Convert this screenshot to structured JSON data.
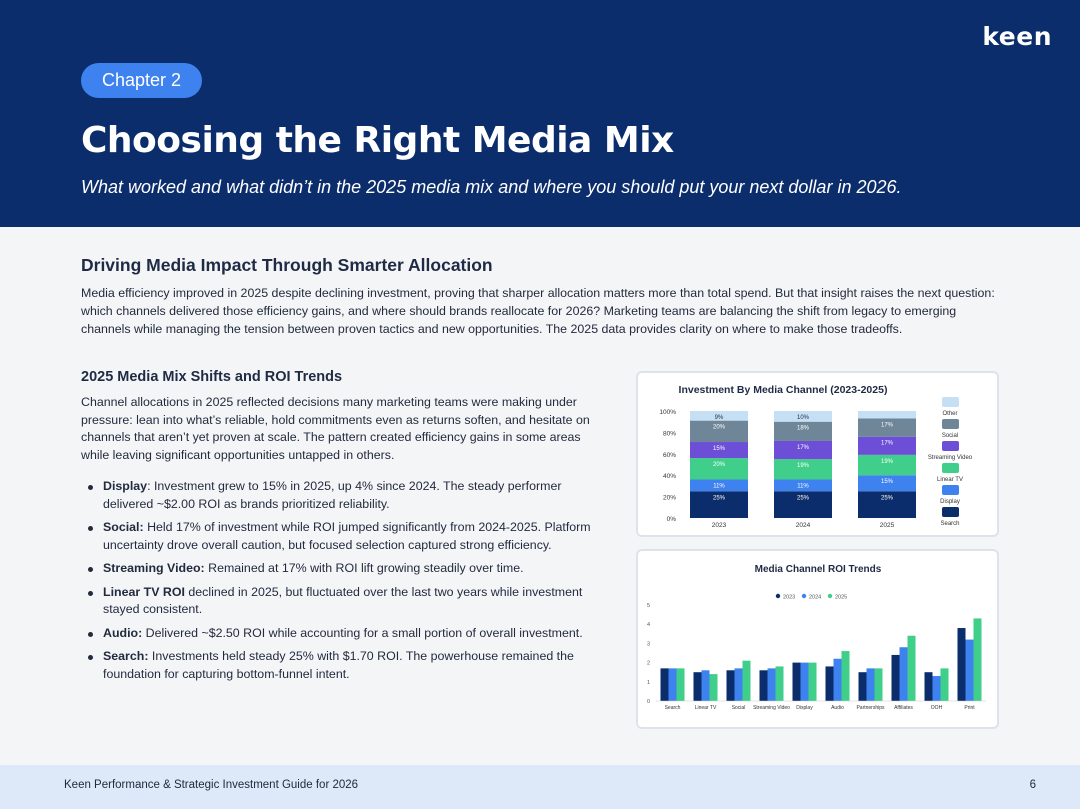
{
  "header": {
    "logo": "keen",
    "chapter": "Chapter 2",
    "title": "Choosing the Right Media Mix",
    "subtitle": "What worked and what didn’t in the 2025 media mix and where you should put your next dollar in 2026."
  },
  "section": {
    "title": "Driving Media Impact Through Smarter Allocation",
    "intro": "Media efficiency improved in 2025 despite declining investment, proving that sharper allocation matters more than total spend. But that insight raises the next question: which channels delivered those efficiency gains, and where should brands reallocate for 2026? Marketing teams are balancing the shift from legacy to emerging channels while managing the tension between proven tactics and new opportunities. The 2025  data provides clarity on where to make those tradeoffs."
  },
  "trends": {
    "title": "2025 Media Mix Shifts and ROI Trends",
    "paragraph": "Channel allocations in 2025 reflected decisions many marketing teams were making under pressure: lean into what’s reliable, hold commitments even as returns soften, and hesitate on channels that aren’t yet proven at scale. The pattern created efficiency gains in some areas while leaving significant opportunities untapped in others.",
    "bullets": [
      {
        "label": "Display",
        "text": ": Investment grew to 15% in 2025, up 4%  since 2024. The steady performer delivered ~$2.00 ROI as brands prioritized reliability."
      },
      {
        "label": "Social:",
        "text": " Held 17% of investment while ROI jumped significantly from 2024-2025. Platform uncertainty drove overall caution, but focused selection captured strong efficiency."
      },
      {
        "label": "Streaming Video:",
        "text": " Remained at 17% with ROI lift growing steadily over time."
      },
      {
        "label": "Linear TV ROI",
        "text": " declined  in 2025, but fluctuated over the last two years while investment stayed consistent."
      },
      {
        "label": "Audio:",
        "text": " Delivered ~$2.50 ROI while accounting for a small portion of overall investment."
      },
      {
        "label": "Search:",
        "text": " Investments held steady 25% with $1.70 ROI. The powerhouse remained the foundation for capturing bottom-funnel intent."
      }
    ]
  },
  "chart_data": [
    {
      "type": "bar",
      "stacked": true,
      "title": "Investment By Media Channel  (2023-2025)",
      "categories": [
        "2023",
        "2024",
        "2025"
      ],
      "yticks": [
        "0%",
        "20%",
        "40%",
        "60%",
        "80%",
        "100%"
      ],
      "ylim": [
        0,
        100
      ],
      "legend_position": "right",
      "series": [
        {
          "name": "Search",
          "color": "#0b2d6b",
          "values": [
            25,
            25,
            25
          ],
          "labels": [
            "25%",
            "25%",
            "25%"
          ]
        },
        {
          "name": "Display",
          "color": "#3e82f0",
          "values": [
            11,
            11,
            15
          ],
          "labels": [
            "11%",
            "11%",
            "15%"
          ]
        },
        {
          "name": "Linear TV",
          "color": "#3fcf8a",
          "values": [
            20,
            19,
            19
          ],
          "labels": [
            "20%",
            "19%",
            "19%"
          ]
        },
        {
          "name": "Streaming Video",
          "color": "#6c4fd6",
          "values": [
            15,
            17,
            17
          ],
          "labels": [
            "15%",
            "17%",
            "17%"
          ]
        },
        {
          "name": "Social",
          "color": "#6f8698",
          "values": [
            20,
            18,
            17
          ],
          "labels": [
            "20%",
            "18%",
            "17%"
          ]
        },
        {
          "name": "Other",
          "color": "#c5e0f5",
          "values": [
            9,
            10,
            7
          ],
          "labels": [
            "9%",
            "10%",
            ""
          ]
        }
      ]
    },
    {
      "type": "bar",
      "title": "Media Channel ROI Trends",
      "categories": [
        "Search",
        "Linear TV",
        "Social",
        "Streaming Video",
        "Display",
        "Audio",
        "Partnerships",
        "Affiliates",
        "OOH",
        "Print"
      ],
      "yticks": [
        "0",
        "1",
        "2",
        "3",
        "4",
        "5"
      ],
      "ylim": [
        0,
        5
      ],
      "legend_position": "top",
      "series": [
        {
          "name": "2023",
          "color": "#0b2d6b",
          "values": [
            1.7,
            1.5,
            1.6,
            1.6,
            2.0,
            1.8,
            1.5,
            2.4,
            1.5,
            3.8
          ]
        },
        {
          "name": "2024",
          "color": "#3e82f0",
          "values": [
            1.7,
            1.6,
            1.7,
            1.7,
            2.0,
            2.2,
            1.7,
            2.8,
            1.3,
            3.2
          ]
        },
        {
          "name": "2025",
          "color": "#3fcf8a",
          "values": [
            1.7,
            1.4,
            2.1,
            1.8,
            2.0,
            2.6,
            1.7,
            3.4,
            1.7,
            4.3
          ]
        }
      ]
    }
  ],
  "footer": {
    "text": "Keen Performance & Strategic Investment Guide for 2026",
    "page": "6"
  }
}
